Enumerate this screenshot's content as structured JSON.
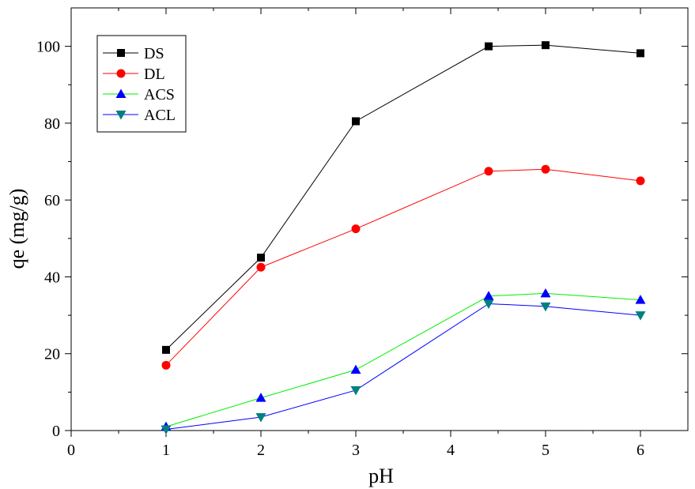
{
  "chart_data": {
    "type": "line",
    "xlabel": "pH",
    "ylabel": "qe (mg/g)",
    "xlim": [
      0,
      6.5
    ],
    "ylim": [
      0,
      110
    ],
    "xticks": [
      0,
      1,
      2,
      3,
      4,
      5,
      6
    ],
    "yticks": [
      0,
      20,
      40,
      60,
      80,
      100
    ],
    "grid": false,
    "legend_position": "top-left",
    "series": [
      {
        "name": "DS",
        "marker": "square",
        "color": "#000000",
        "x": [
          1,
          2,
          3,
          4.4,
          5,
          6
        ],
        "y": [
          21,
          45,
          80.5,
          100,
          100.3,
          98.2
        ]
      },
      {
        "name": "DL",
        "marker": "circle",
        "color": "#ff0000",
        "x": [
          1,
          2,
          3,
          4.4,
          5,
          6
        ],
        "y": [
          17,
          42.5,
          52.5,
          67.5,
          68,
          65
        ]
      },
      {
        "name": "ACS",
        "marker": "triangle-up",
        "color": "#0000ff",
        "line_color": "#00ee00",
        "x": [
          1,
          2,
          3,
          4.4,
          5,
          6
        ],
        "y": [
          1,
          8.5,
          15.8,
          35,
          35.7,
          34
        ]
      },
      {
        "name": "ACL",
        "marker": "triangle-down",
        "color": "#008080",
        "line_color": "#0000ff",
        "x": [
          1,
          2,
          3,
          4.4,
          5,
          6
        ],
        "y": [
          0.3,
          3.5,
          10.5,
          33,
          32.3,
          30
        ]
      }
    ]
  }
}
